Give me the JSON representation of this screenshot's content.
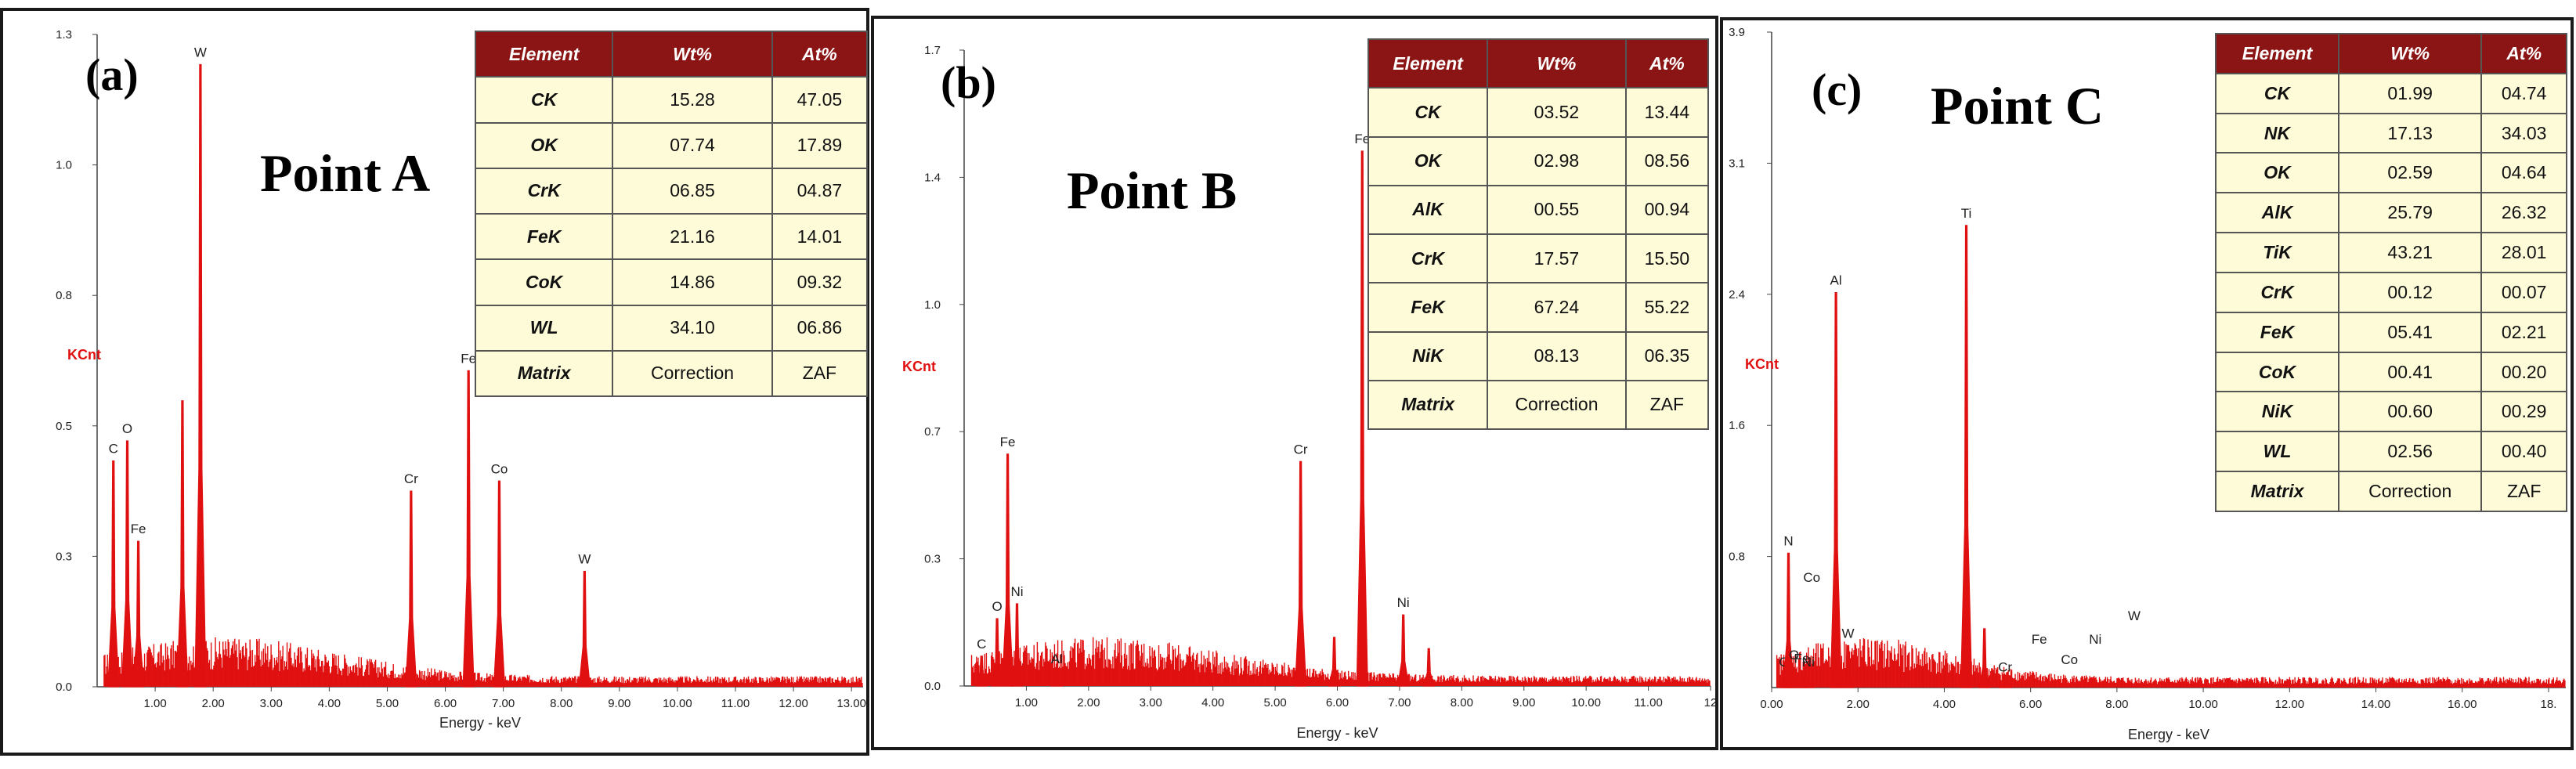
{
  "colors": {
    "spectrum": "#e01010",
    "table_header_bg": "#8b1414",
    "table_header_fg": "#ffffff",
    "table_body_bg": "#fefbd9"
  },
  "chart_data": [
    {
      "id": "a",
      "type": "line",
      "panel_label": "(a)",
      "title": "Point A",
      "xlabel": "Energy - keV",
      "ylabel": "KCnt",
      "xlim": [
        0,
        13.2
      ],
      "ylim": [
        0,
        1.3
      ],
      "xticks": [
        "1.00",
        "2.00",
        "3.00",
        "4.00",
        "5.00",
        "6.00",
        "7.00",
        "8.00",
        "9.00",
        "10.00",
        "11.00",
        "12.00",
        "13.00"
      ],
      "yticks": [
        "0.0",
        "0.3",
        "0.5",
        "0.8",
        "1.0",
        "1.3"
      ],
      "peaks": [
        {
          "label": "C",
          "x": 0.28,
          "y": 0.45
        },
        {
          "label": "O",
          "x": 0.52,
          "y": 0.49
        },
        {
          "label": "Fe",
          "x": 0.71,
          "y": 0.29
        },
        {
          "label": "",
          "x": 1.47,
          "y": 0.57
        },
        {
          "label": "W",
          "x": 1.78,
          "y": 1.24
        },
        {
          "label": "Cr",
          "x": 5.41,
          "y": 0.39
        },
        {
          "label": "Fe",
          "x": 6.4,
          "y": 0.63
        },
        {
          "label": "Co",
          "x": 6.93,
          "y": 0.41
        },
        {
          "label": "W",
          "x": 8.4,
          "y": 0.23
        }
      ],
      "table": {
        "headers": [
          "Element",
          "Wt%",
          "At%"
        ],
        "rows": [
          [
            "CK",
            "15.28",
            "47.05"
          ],
          [
            "OK",
            "07.74",
            "17.89"
          ],
          [
            "CrK",
            "06.85",
            "04.87"
          ],
          [
            "FeK",
            "21.16",
            "14.01"
          ],
          [
            "CoK",
            "14.86",
            "09.32"
          ],
          [
            "WL",
            "34.10",
            "06.86"
          ],
          [
            "Matrix",
            "Correction",
            "ZAF"
          ]
        ]
      }
    },
    {
      "id": "b",
      "type": "line",
      "panel_label": "(b)",
      "title": "Point B",
      "xlabel": "Energy - keV",
      "ylabel": "KCnt",
      "xlim": [
        0,
        12.0
      ],
      "ylim": [
        0,
        1.7
      ],
      "xticks": [
        "1.00",
        "2.00",
        "3.00",
        "4.00",
        "5.00",
        "6.00",
        "7.00",
        "8.00",
        "9.00",
        "10.00",
        "11.00",
        "12"
      ],
      "yticks": [
        "0.0",
        "0.3",
        "0.7",
        "1.0",
        "1.4",
        "1.7"
      ],
      "peaks": [
        {
          "label": "C",
          "x": 0.28,
          "y": 0.08
        },
        {
          "label": "O",
          "x": 0.53,
          "y": 0.18
        },
        {
          "label": "Fe",
          "x": 0.7,
          "y": 0.62
        },
        {
          "label": "Ni",
          "x": 0.85,
          "y": 0.22
        },
        {
          "label": "Al",
          "x": 1.49,
          "y": 0.04
        },
        {
          "label": "Cr",
          "x": 5.41,
          "y": 0.6
        },
        {
          "label": "",
          "x": 5.95,
          "y": 0.13
        },
        {
          "label": "Fe",
          "x": 6.4,
          "y": 1.43
        },
        {
          "label": "Ni",
          "x": 7.06,
          "y": 0.19
        },
        {
          "label": "",
          "x": 7.47,
          "y": 0.1
        }
      ],
      "table": {
        "headers": [
          "Element",
          "Wt%",
          "At%"
        ],
        "rows": [
          [
            "CK",
            "03.52",
            "13.44"
          ],
          [
            "OK",
            "02.98",
            "08.56"
          ],
          [
            "AlK",
            "00.55",
            "00.94"
          ],
          [
            "CrK",
            "17.57",
            "15.50"
          ],
          [
            "FeK",
            "67.24",
            "55.22"
          ],
          [
            "NiK",
            "08.13",
            "06.35"
          ],
          [
            "Matrix",
            "Correction",
            "ZAF"
          ]
        ]
      }
    },
    {
      "id": "c",
      "type": "line",
      "panel_label": "(c)",
      "title": "Point C",
      "xlabel": "Energy - keV",
      "ylabel": "KCnt",
      "xlim": [
        0,
        18.4
      ],
      "ylim": [
        0,
        3.9
      ],
      "xticks": [
        "0.00",
        "2.00",
        "4.00",
        "6.00",
        "8.00",
        "10.00",
        "12.00",
        "14.00",
        "16.00",
        "18."
      ],
      "yticks": [
        "0.8",
        "1.6",
        "2.4",
        "3.1",
        "3.9"
      ],
      "peaks": [
        {
          "label": "C",
          "x": 0.28,
          "y": 0.08
        },
        {
          "label": "N",
          "x": 0.39,
          "y": 0.8
        },
        {
          "label": "O",
          "x": 0.52,
          "y": 0.12
        },
        {
          "label": "Fe",
          "x": 0.7,
          "y": 0.1
        },
        {
          "label": "Ni",
          "x": 0.85,
          "y": 0.08
        },
        {
          "label": "Al",
          "x": 1.49,
          "y": 2.35
        },
        {
          "label": "W",
          "x": 1.77,
          "y": 0.25
        },
        {
          "label": "Ti",
          "x": 4.51,
          "y": 2.75
        },
        {
          "label": "",
          "x": 4.93,
          "y": 0.35
        },
        {
          "label": "Cr",
          "x": 5.41,
          "y": 0.05
        }
      ],
      "annotations": [
        {
          "label": "Co",
          "x": 0.93,
          "y": 0.63
        },
        {
          "label": "Fe",
          "x": 6.2,
          "y": 0.26
        },
        {
          "label": "Co",
          "x": 6.9,
          "y": 0.14
        },
        {
          "label": "Ni",
          "x": 7.5,
          "y": 0.26
        },
        {
          "label": "W",
          "x": 8.4,
          "y": 0.4
        }
      ],
      "table": {
        "headers": [
          "Element",
          "Wt%",
          "At%"
        ],
        "rows": [
          [
            "CK",
            "01.99",
            "04.74"
          ],
          [
            "NK",
            "17.13",
            "34.03"
          ],
          [
            "OK",
            "02.59",
            "04.64"
          ],
          [
            "AlK",
            "25.79",
            "26.32"
          ],
          [
            "TiK",
            "43.21",
            "28.01"
          ],
          [
            "CrK",
            "00.12",
            "00.07"
          ],
          [
            "FeK",
            "05.41",
            "02.21"
          ],
          [
            "CoK",
            "00.41",
            "00.20"
          ],
          [
            "NiK",
            "00.60",
            "00.29"
          ],
          [
            "WL",
            "02.56",
            "00.40"
          ],
          [
            "Matrix",
            "Correction",
            "ZAF"
          ]
        ]
      }
    }
  ]
}
